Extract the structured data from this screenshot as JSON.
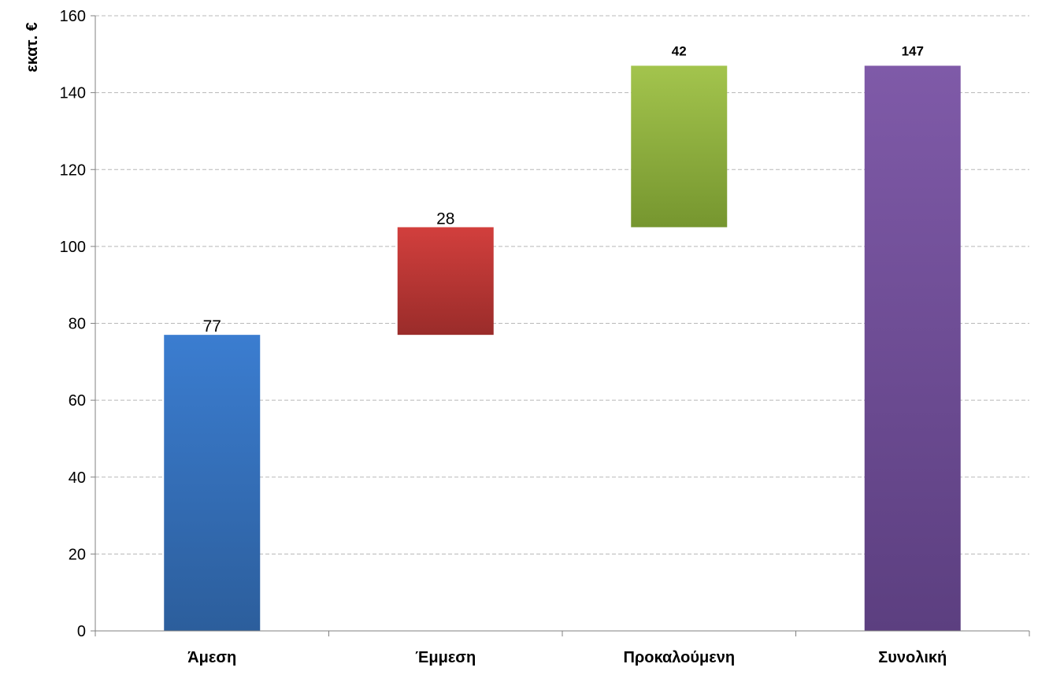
{
  "chart_data": {
    "type": "bar",
    "subtype": "waterfall",
    "title": "",
    "xlabel": "",
    "ylabel": "εκατ. €",
    "ylim": [
      0,
      160
    ],
    "y_ticks": [
      "0",
      "20",
      "40",
      "60",
      "80",
      "100",
      "120",
      "140",
      "160"
    ],
    "grid": true,
    "legend": "none",
    "categories": [
      "Άμεση",
      "Έμμεση",
      "Προκαλούμενη",
      "Συνολική"
    ],
    "values": [
      77,
      28,
      42,
      147
    ],
    "bases": [
      0,
      77,
      105,
      0
    ],
    "data_labels": [
      "77",
      "28",
      "42",
      "147"
    ],
    "data_label_bold": [
      false,
      false,
      true,
      true
    ],
    "colors": [
      {
        "top": "#3b7dd0",
        "bottom": "#2c5e9c"
      },
      {
        "top": "#d23f3d",
        "bottom": "#9a2c2a"
      },
      {
        "top": "#a3c44d",
        "bottom": "#76962f"
      },
      {
        "top": "#7f5aa8",
        "bottom": "#5c3f80"
      }
    ]
  }
}
